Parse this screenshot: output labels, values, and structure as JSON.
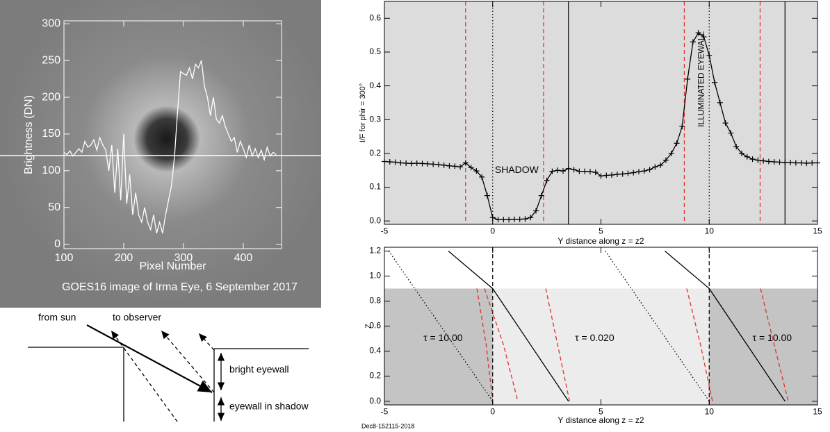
{
  "chart_data": [
    {
      "type": "line",
      "x_label": "Pixel Number",
      "y_label": "Brightness (DN)",
      "note": "GOES16 image of Irma Eye, 6 September 2017",
      "axis_color": "#ffffff",
      "x": [
        100,
        105,
        110,
        115,
        120,
        125,
        130,
        135,
        140,
        145,
        150,
        155,
        160,
        165,
        170,
        175,
        180,
        185,
        190,
        195,
        200,
        205,
        210,
        215,
        220,
        225,
        230,
        235,
        240,
        245,
        250,
        255,
        260,
        265,
        270,
        275,
        280,
        285,
        290,
        295,
        300,
        305,
        310,
        315,
        320,
        325,
        330,
        335,
        340,
        345,
        350,
        355,
        360,
        365,
        370,
        375,
        380,
        385,
        390,
        395,
        400,
        405,
        410,
        415,
        420,
        425,
        430,
        435,
        440,
        445,
        450,
        455
      ],
      "series": [
        {
          "color": "#ffffff",
          "values": [
            125,
            122,
            127,
            120,
            125,
            130,
            125,
            140,
            132,
            135,
            142,
            128,
            145,
            135,
            128,
            100,
            135,
            70,
            130,
            60,
            150,
            55,
            95,
            40,
            70,
            40,
            30,
            50,
            30,
            20,
            40,
            15,
            30,
            15,
            40,
            60,
            80,
            120,
            180,
            235,
            232,
            230,
            240,
            225,
            245,
            240,
            250,
            215,
            200,
            175,
            200,
            170,
            165,
            175,
            160,
            150,
            140,
            145,
            125,
            140,
            130,
            118,
            135,
            120,
            130,
            118,
            128,
            115,
            132,
            120,
            125,
            122
          ]
        }
      ],
      "xlim": [
        100,
        464
      ],
      "ylim": [
        -6,
        304
      ],
      "xticks": [
        100,
        200,
        300,
        400
      ],
      "yticks": [
        0,
        50,
        100,
        150,
        200,
        250,
        300
      ]
    },
    {
      "type": "line",
      "x_label": "Y distance along z = z2",
      "y_label": "I/F for phir = 300°",
      "background": "#dcdcdc",
      "axis_color": "#000000",
      "x": [
        -5,
        -4.75,
        -4.5,
        -4.25,
        -4,
        -3.75,
        -3.5,
        -3.25,
        -3,
        -2.75,
        -2.5,
        -2.25,
        -2,
        -1.75,
        -1.5,
        -1.25,
        -1,
        -0.75,
        -0.5,
        -0.25,
        0,
        0.25,
        0.5,
        0.75,
        1,
        1.25,
        1.5,
        1.75,
        2,
        2.25,
        2.5,
        2.75,
        3,
        3.25,
        3.5,
        3.75,
        4,
        4.25,
        4.5,
        4.75,
        5,
        5.25,
        5.5,
        5.75,
        6,
        6.25,
        6.5,
        6.75,
        7,
        7.25,
        7.5,
        7.75,
        8,
        8.25,
        8.5,
        8.75,
        9,
        9.25,
        9.5,
        9.75,
        10,
        10.25,
        10.5,
        10.75,
        11,
        11.25,
        11.5,
        11.75,
        12,
        12.25,
        12.5,
        12.75,
        13,
        13.25,
        13.5,
        13.75,
        14,
        14.25,
        14.5,
        14.75,
        15
      ],
      "series": [
        {
          "color": "#000000",
          "marker": "plus",
          "values": [
            0.176,
            0.175,
            0.174,
            0.172,
            0.171,
            0.17,
            0.171,
            0.17,
            0.169,
            0.168,
            0.167,
            0.165,
            0.163,
            0.162,
            0.16,
            0.172,
            0.158,
            0.148,
            0.13,
            0.075,
            0.01,
            0.004,
            0.004,
            0.004,
            0.005,
            0.005,
            0.006,
            0.01,
            0.03,
            0.075,
            0.12,
            0.147,
            0.15,
            0.148,
            0.155,
            0.152,
            0.147,
            0.147,
            0.146,
            0.144,
            0.133,
            0.135,
            0.136,
            0.138,
            0.139,
            0.141,
            0.143,
            0.146,
            0.148,
            0.152,
            0.16,
            0.165,
            0.18,
            0.2,
            0.23,
            0.28,
            0.42,
            0.53,
            0.557,
            0.545,
            0.49,
            0.41,
            0.35,
            0.29,
            0.26,
            0.22,
            0.2,
            0.19,
            0.183,
            0.18,
            0.178,
            0.176,
            0.175,
            0.174,
            0.173,
            0.173,
            0.172,
            0.172,
            0.171,
            0.172,
            0.172
          ]
        }
      ],
      "vlines": [
        {
          "x": -1.25,
          "color": "#e0302a",
          "style": "dashed"
        },
        {
          "x": 2.35,
          "color": "#e0302a",
          "style": "dashed"
        },
        {
          "x": 8.85,
          "color": "#e0302a",
          "style": "dashed"
        },
        {
          "x": 12.35,
          "color": "#e0302a",
          "style": "dashed"
        },
        {
          "x": 0,
          "color": "#000000",
          "style": "dotted"
        },
        {
          "x": 10,
          "color": "#000000",
          "style": "dotted"
        },
        {
          "x": 3.5,
          "color": "#000000",
          "style": "solid"
        },
        {
          "x": 13.5,
          "color": "#000000",
          "style": "solid"
        }
      ],
      "annotations": [
        {
          "text": "SHADOW",
          "x": 0.1,
          "y": 0.15
        },
        {
          "text": "ILLUMINATED EYEWALL",
          "x": 9.65,
          "y": 0.42,
          "rotate": -90
        }
      ],
      "xlim": [
        -5,
        15
      ],
      "ylim": [
        -0.01,
        0.65
      ],
      "xticks": [
        -5,
        0,
        5,
        10,
        15
      ],
      "yticks": [
        {
          "value": 0,
          "label": "0.0"
        },
        0.1,
        0.2,
        0.3,
        0.4,
        0.5,
        0.6
      ]
    },
    {
      "type": "line",
      "x_label": "Y distance along z = z2",
      "y_label": "Z",
      "footnote": "Dec8-152115-2018",
      "axis_color": "#000000",
      "regions": [
        {
          "x": [
            -5,
            0
          ],
          "y": [
            -0.03,
            0.9
          ],
          "color": "#c4c4c4"
        },
        {
          "x": [
            0,
            10
          ],
          "y": [
            -0.03,
            0.9
          ],
          "color": "#ececec"
        },
        {
          "x": [
            10,
            15
          ],
          "y": [
            -0.03,
            0.9
          ],
          "color": "#c4c4c4"
        }
      ],
      "series": [
        {
          "x": [
            -4.8,
            0
          ],
          "values": [
            1.2,
            0
          ],
          "color": "#000000",
          "style": "dotted"
        },
        {
          "x": [
            5.2,
            10
          ],
          "values": [
            1.2,
            0
          ],
          "color": "#000000",
          "style": "dotted"
        },
        {
          "x": [
            -2.05,
            0,
            3.5
          ],
          "values": [
            1.2,
            0.9,
            0
          ],
          "color": "#000000",
          "style": "solid"
        },
        {
          "x": [
            7.95,
            10,
            13.5
          ],
          "values": [
            1.2,
            0.9,
            0
          ],
          "color": "#000000",
          "style": "solid"
        },
        {
          "x": [
            -0.73,
            -0.3,
            0
          ],
          "values": [
            0.9,
            0.45,
            0
          ],
          "color": "#e0302a",
          "style": "dashed"
        },
        {
          "x": [
            -0.38,
            0.5,
            1.16
          ],
          "values": [
            0.9,
            0.45,
            0
          ],
          "color": "#e0302a",
          "style": "dashed"
        },
        {
          "x": [
            2.45,
            3.0,
            3.55
          ],
          "values": [
            0.9,
            0.45,
            0
          ],
          "color": "#e0302a",
          "style": "dashed"
        },
        {
          "x": [
            8.96,
            9.6,
            10.15
          ],
          "values": [
            0.9,
            0.45,
            0
          ],
          "color": "#e0302a",
          "style": "dashed"
        },
        {
          "x": [
            12.37,
            13.0,
            13.65
          ],
          "values": [
            0.9,
            0.45,
            0
          ],
          "color": "#e0302a",
          "style": "dashed"
        }
      ],
      "vlines": [
        {
          "x": 0,
          "color": "#000000",
          "style": "dashed"
        },
        {
          "x": 10,
          "color": "#000000",
          "style": "dashed"
        }
      ],
      "annotations": [
        {
          "text": "τ = 10.00",
          "x": -3.2,
          "y": 0.5
        },
        {
          "text": "τ =  0.020",
          "x": 3.8,
          "y": 0.5
        },
        {
          "text": "τ = 10.00",
          "x": 12.0,
          "y": 0.5
        }
      ],
      "xlim": [
        -5,
        15
      ],
      "ylim": [
        -0.03,
        1.23
      ],
      "xticks": [
        -5,
        0,
        5,
        10,
        15
      ],
      "yticks": [
        {
          "value": 0,
          "label": "0.0"
        },
        0.2,
        0.4,
        0.6,
        0.8,
        {
          "value": 1,
          "label": "1.0"
        },
        1.2
      ]
    }
  ],
  "diagram": {
    "labels": [
      "from sun",
      "to observer",
      "bright eyewall",
      "eyewall in shadow"
    ]
  }
}
